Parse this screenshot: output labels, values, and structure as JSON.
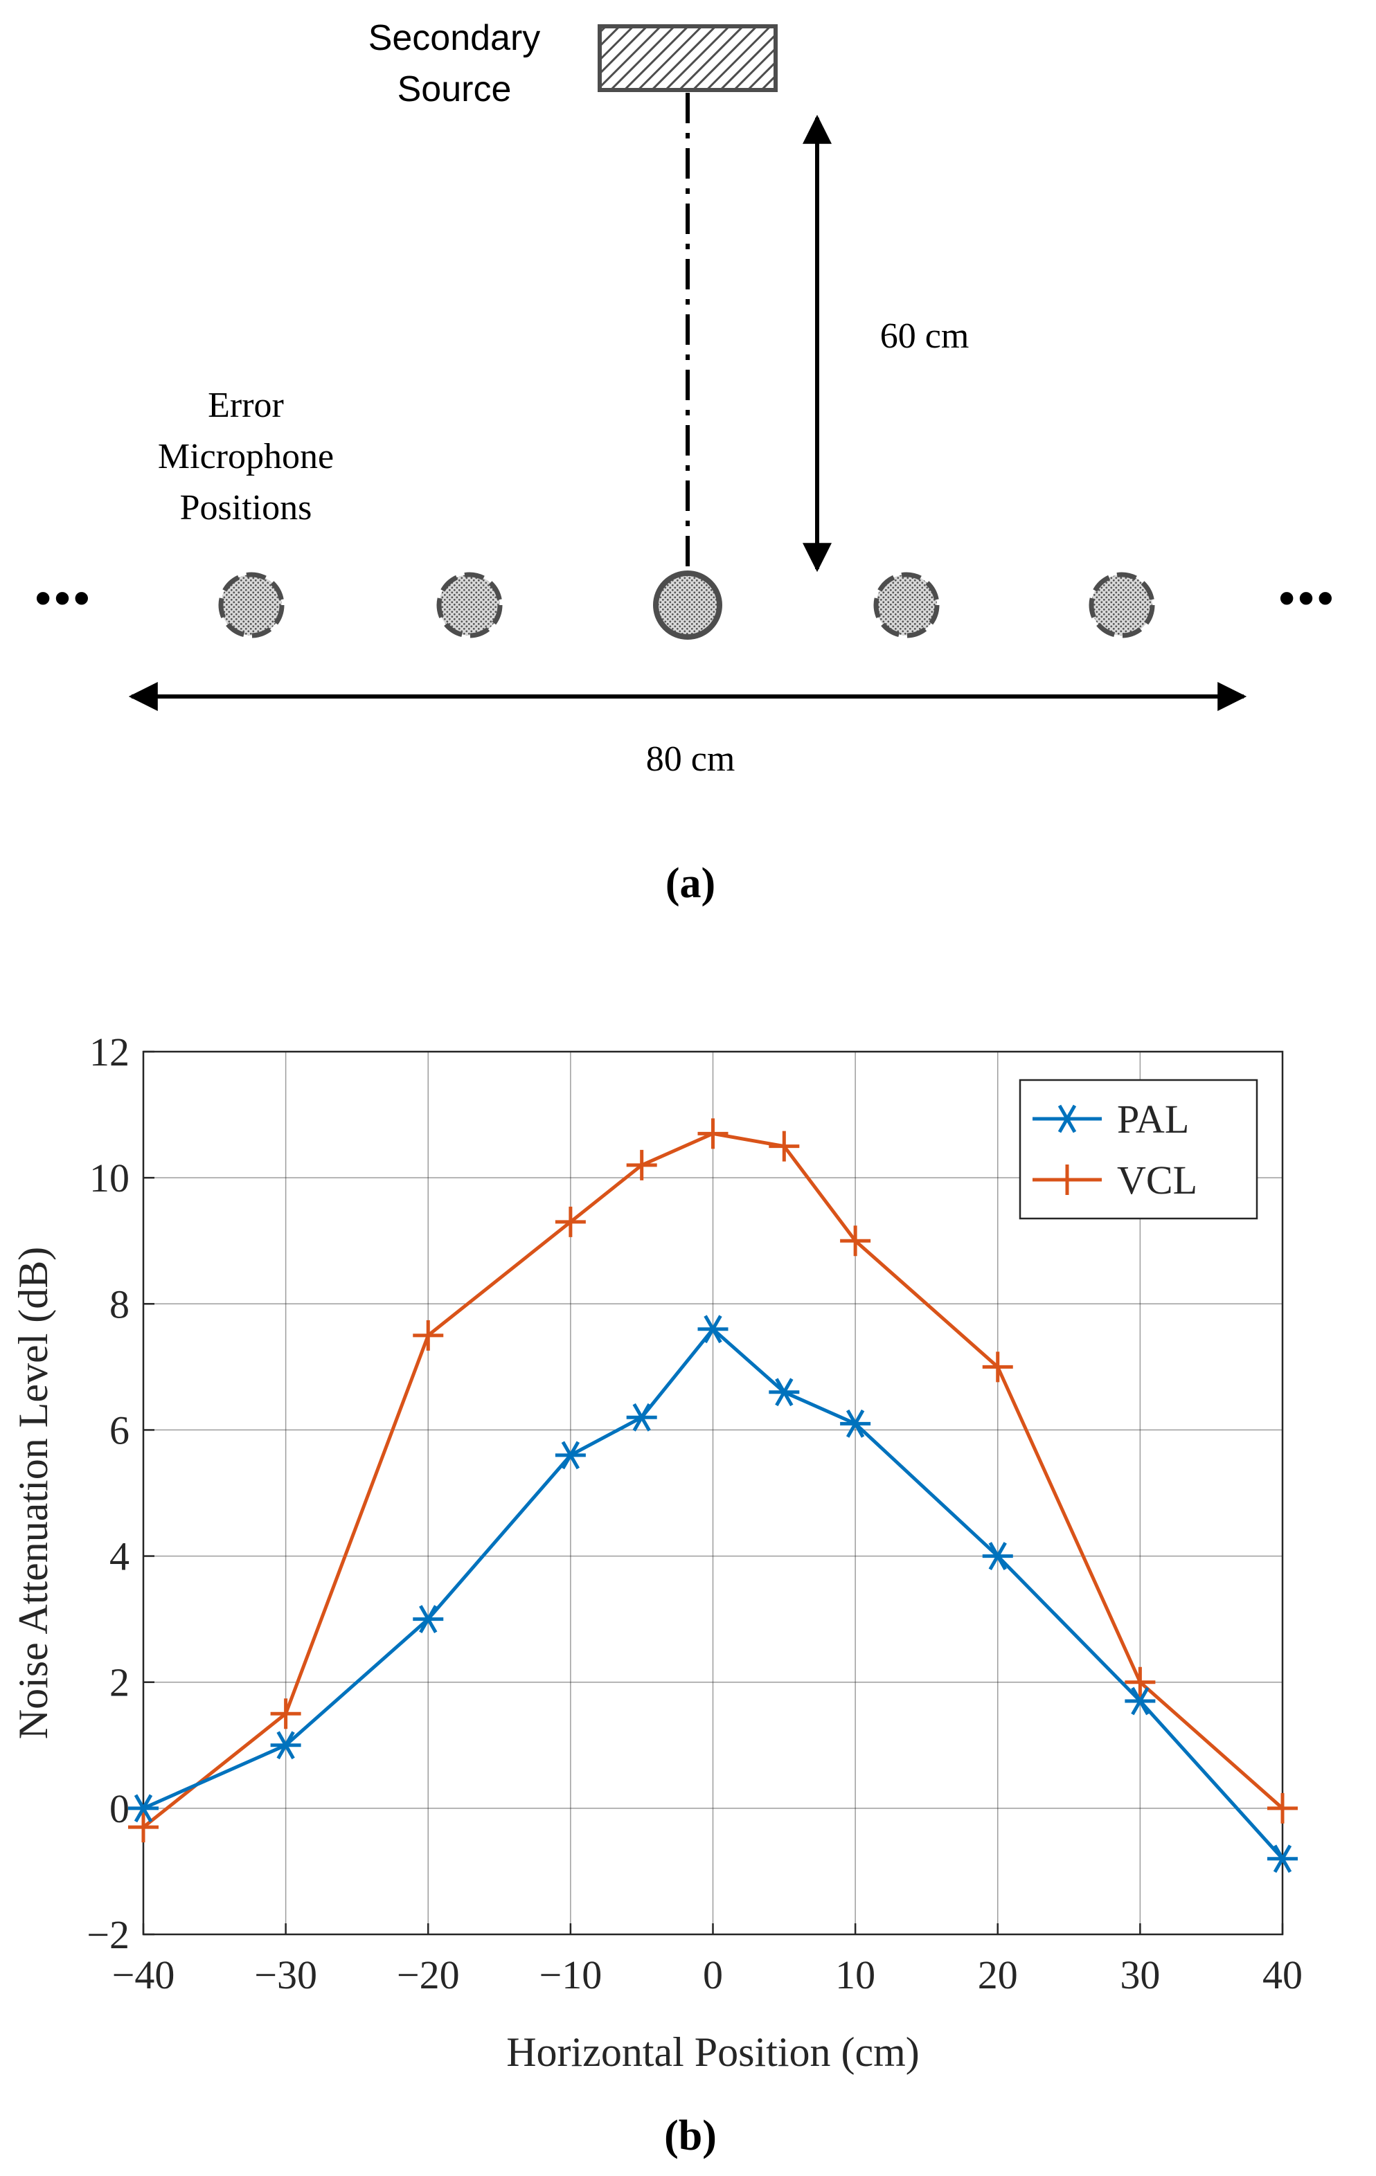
{
  "panel_a": {
    "source_label_line1": "Secondary",
    "source_label_line2": "Source",
    "vertical_distance_label": "60 cm",
    "mic_label_line1": "Error",
    "mic_label_line2": "Microphone",
    "mic_label_line3": "Positions",
    "ellipsis_left": "•••",
    "ellipsis_right": "•••",
    "horizontal_distance_label": "80 cm",
    "caption": "(a)"
  },
  "panel_b": {
    "caption": "(b)"
  },
  "colors": {
    "pal": "#0072BD",
    "vcl": "#D95319",
    "grid": "#262626",
    "device": "#4d4d4d"
  },
  "chart_data": {
    "type": "line",
    "title": "",
    "xlabel": "Horizontal Position (cm)",
    "ylabel": "Noise Attenuation Level (dB)",
    "xlim": [
      -40,
      40
    ],
    "ylim": [
      -2,
      12
    ],
    "xticks": [
      -40,
      -30,
      -20,
      -10,
      0,
      10,
      20,
      30,
      40
    ],
    "xtick_labels": [
      "−40",
      "−30",
      "−20",
      "−10",
      "0",
      "10",
      "20",
      "30",
      "40"
    ],
    "yticks": [
      -2,
      0,
      2,
      4,
      6,
      8,
      10,
      12
    ],
    "ytick_labels": [
      "−2",
      "0",
      "2",
      "4",
      "6",
      "8",
      "10",
      "12"
    ],
    "grid": true,
    "legend_position": "top-right",
    "x": [
      -40,
      -30,
      -20,
      -10,
      -5,
      0,
      5,
      10,
      20,
      30,
      40
    ],
    "series": [
      {
        "name": "PAL",
        "marker": "asterisk",
        "values": [
          0,
          1.0,
          3.0,
          5.6,
          6.2,
          7.6,
          6.6,
          6.1,
          4.0,
          1.7,
          -0.8
        ]
      },
      {
        "name": "VCL",
        "marker": "plus",
        "values": [
          -0.3,
          1.5,
          7.5,
          9.3,
          10.2,
          10.7,
          10.5,
          9.0,
          7.0,
          2.0,
          0.0
        ]
      }
    ]
  }
}
